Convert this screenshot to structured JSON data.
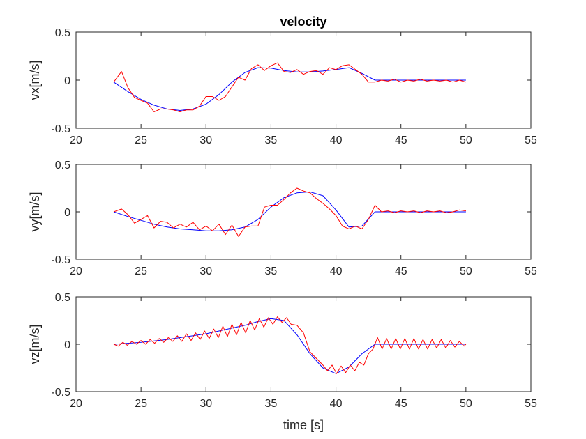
{
  "figure": {
    "title": "velocity"
  },
  "chart_data": [
    {
      "type": "line",
      "title": "velocity",
      "xlabel": "",
      "ylabel": "vx[m/s]",
      "xlim": [
        20,
        55
      ],
      "ylim": [
        -0.5,
        0.5
      ],
      "xticks": [
        "20",
        "25",
        "30",
        "35",
        "40",
        "45",
        "50",
        "55"
      ],
      "yticks": [
        "0.5",
        "0",
        "-0.5"
      ],
      "grid": false,
      "series": [
        {
          "color": "#0000ff",
          "x": [
            22.9,
            24,
            25,
            26,
            27,
            28,
            29,
            30,
            31,
            32,
            33,
            34,
            35,
            36,
            37,
            38,
            39,
            40,
            41,
            42,
            43,
            44,
            45,
            46,
            47,
            48,
            49,
            50
          ],
          "y": [
            -0.02,
            -0.12,
            -0.2,
            -0.26,
            -0.3,
            -0.315,
            -0.3,
            -0.25,
            -0.15,
            -0.02,
            0.08,
            0.13,
            0.125,
            0.1,
            0.085,
            0.085,
            0.095,
            0.11,
            0.13,
            0.07,
            0.0,
            0.0,
            0.0,
            0.0,
            0.0,
            0.0,
            0.0,
            0.0
          ]
        },
        {
          "color": "#ff0000",
          "x": [
            22.9,
            23.5,
            24,
            24.5,
            25,
            25.5,
            26,
            26.5,
            27,
            27.5,
            28,
            28.5,
            29,
            29.5,
            30,
            30.5,
            31,
            31.5,
            32,
            32.5,
            33,
            33.5,
            34,
            34.5,
            35,
            35.5,
            36,
            36.5,
            37,
            37.5,
            38,
            38.5,
            39,
            39.5,
            40,
            40.5,
            41,
            41.5,
            42,
            42.5,
            43,
            43.5,
            44,
            44.5,
            45,
            45.5,
            46,
            46.5,
            47,
            47.5,
            48,
            48.5,
            49,
            49.5,
            50
          ],
          "y": [
            -0.02,
            0.09,
            -0.08,
            -0.18,
            -0.21,
            -0.24,
            -0.33,
            -0.3,
            -0.3,
            -0.31,
            -0.33,
            -0.31,
            -0.31,
            -0.27,
            -0.17,
            -0.17,
            -0.21,
            -0.17,
            -0.07,
            0.03,
            0.0,
            0.12,
            0.16,
            0.1,
            0.15,
            0.18,
            0.09,
            0.08,
            0.11,
            0.06,
            0.09,
            0.1,
            0.06,
            0.13,
            0.11,
            0.15,
            0.16,
            0.11,
            0.06,
            -0.02,
            -0.02,
            0.0,
            -0.01,
            0.01,
            -0.02,
            0.0,
            -0.01,
            0.01,
            -0.01,
            0.0,
            -0.01,
            0.0,
            -0.02,
            0.0,
            -0.02
          ]
        }
      ]
    },
    {
      "type": "line",
      "title": "",
      "xlabel": "",
      "ylabel": "vy[m/s]",
      "xlim": [
        20,
        55
      ],
      "ylim": [
        -0.5,
        0.5
      ],
      "xticks": [
        "20",
        "25",
        "30",
        "35",
        "40",
        "45",
        "50",
        "55"
      ],
      "yticks": [
        "0.5",
        "0",
        "-0.5"
      ],
      "grid": false,
      "series": [
        {
          "color": "#0000ff",
          "x": [
            22.9,
            24,
            25,
            26,
            27,
            28,
            29,
            30,
            31,
            32,
            33,
            34,
            35,
            36,
            37,
            38,
            39,
            40,
            41,
            42,
            43,
            44,
            45,
            46,
            47,
            48,
            49,
            50
          ],
          "y": [
            0.0,
            -0.05,
            -0.09,
            -0.13,
            -0.16,
            -0.18,
            -0.19,
            -0.2,
            -0.2,
            -0.19,
            -0.16,
            -0.08,
            0.05,
            0.15,
            0.2,
            0.21,
            0.17,
            0.02,
            -0.16,
            -0.15,
            0.0,
            0.0,
            0.0,
            0.0,
            0.0,
            0.0,
            0.0,
            0.0
          ]
        },
        {
          "color": "#ff0000",
          "x": [
            22.9,
            23.5,
            24,
            24.5,
            25,
            25.5,
            26,
            26.5,
            27,
            27.5,
            28,
            28.5,
            29,
            29.5,
            30,
            30.5,
            31,
            31.5,
            32,
            32.5,
            33,
            33.5,
            34,
            34.5,
            35,
            35.5,
            36,
            36.5,
            37,
            37.5,
            38,
            38.5,
            39,
            39.5,
            40,
            40.5,
            41,
            41.5,
            42,
            42.5,
            43,
            43.5,
            44,
            44.5,
            45,
            45.5,
            46,
            46.5,
            47,
            47.5,
            48,
            48.5,
            49,
            49.5,
            50
          ],
          "y": [
            0.0,
            0.03,
            -0.03,
            -0.12,
            -0.08,
            -0.04,
            -0.17,
            -0.1,
            -0.11,
            -0.17,
            -0.13,
            -0.16,
            -0.11,
            -0.19,
            -0.15,
            -0.2,
            -0.13,
            -0.24,
            -0.14,
            -0.26,
            -0.16,
            -0.15,
            -0.15,
            0.05,
            0.07,
            0.07,
            0.13,
            0.2,
            0.25,
            0.22,
            0.2,
            0.14,
            0.09,
            0.03,
            -0.04,
            -0.15,
            -0.18,
            -0.15,
            -0.18,
            -0.08,
            0.07,
            0.0,
            0.01,
            -0.01,
            0.01,
            0.0,
            0.01,
            -0.01,
            0.01,
            0.0,
            0.01,
            -0.01,
            0.0,
            0.02,
            0.01
          ]
        }
      ]
    },
    {
      "type": "line",
      "title": "",
      "xlabel": "time [s]",
      "ylabel": "vz[m/s]",
      "xlim": [
        20,
        55
      ],
      "ylim": [
        -0.5,
        0.5
      ],
      "xticks": [
        "20",
        "25",
        "30",
        "35",
        "40",
        "45",
        "50",
        "55"
      ],
      "yticks": [
        "0.5",
        "0",
        "-0.5"
      ],
      "grid": false,
      "series": [
        {
          "color": "#0000ff",
          "x": [
            22.9,
            24,
            25,
            26,
            27,
            28,
            29,
            30,
            31,
            32,
            33,
            34,
            35,
            36,
            37,
            38,
            39,
            40,
            41,
            42,
            43,
            44,
            45,
            46,
            47,
            48,
            49,
            50
          ],
          "y": [
            0.0,
            0.01,
            0.02,
            0.035,
            0.05,
            0.07,
            0.09,
            0.11,
            0.14,
            0.17,
            0.2,
            0.24,
            0.27,
            0.25,
            0.1,
            -0.1,
            -0.25,
            -0.31,
            -0.24,
            -0.1,
            0.0,
            0.0,
            0.0,
            0.0,
            0.0,
            0.0,
            0.0,
            0.0
          ]
        },
        {
          "color": "#ff0000",
          "x": [
            22.9,
            23.25,
            23.6,
            23.95,
            24.3,
            24.65,
            25.0,
            25.35,
            25.7,
            26.05,
            26.4,
            26.75,
            27.1,
            27.45,
            27.8,
            28.15,
            28.5,
            28.85,
            29.2,
            29.55,
            29.9,
            30.25,
            30.6,
            30.95,
            31.3,
            31.65,
            32.0,
            32.35,
            32.7,
            33.05,
            33.4,
            33.75,
            34.1,
            34.45,
            34.8,
            35.15,
            35.5,
            35.85,
            36.2,
            36.55,
            37.0,
            37.5,
            38.0,
            38.5,
            39.0,
            39.35,
            39.7,
            40.05,
            40.4,
            40.75,
            41.1,
            41.45,
            41.8,
            42.15,
            42.5,
            42.85,
            43.2,
            43.55,
            43.9,
            44.25,
            44.6,
            44.95,
            45.3,
            45.65,
            46.0,
            46.35,
            46.7,
            47.05,
            47.4,
            47.75,
            48.1,
            48.45,
            48.8,
            49.15,
            49.5,
            49.85,
            50.0
          ],
          "y": [
            0.0,
            -0.02,
            0.02,
            -0.01,
            0.03,
            0.0,
            0.04,
            0.0,
            0.05,
            0.01,
            0.06,
            0.02,
            0.07,
            0.03,
            0.09,
            0.03,
            0.11,
            0.04,
            0.12,
            0.05,
            0.14,
            0.06,
            0.16,
            0.07,
            0.19,
            0.08,
            0.21,
            0.1,
            0.23,
            0.12,
            0.25,
            0.15,
            0.27,
            0.18,
            0.28,
            0.21,
            0.29,
            0.23,
            0.28,
            0.21,
            0.2,
            0.12,
            -0.08,
            -0.15,
            -0.22,
            -0.28,
            -0.22,
            -0.31,
            -0.23,
            -0.3,
            -0.22,
            -0.28,
            -0.19,
            -0.22,
            -0.1,
            -0.05,
            0.07,
            -0.05,
            0.06,
            -0.05,
            0.06,
            -0.05,
            0.06,
            -0.05,
            0.06,
            -0.05,
            0.05,
            -0.05,
            0.05,
            -0.04,
            0.05,
            -0.04,
            0.04,
            -0.03,
            0.03,
            -0.02,
            0.0
          ]
        }
      ]
    }
  ]
}
